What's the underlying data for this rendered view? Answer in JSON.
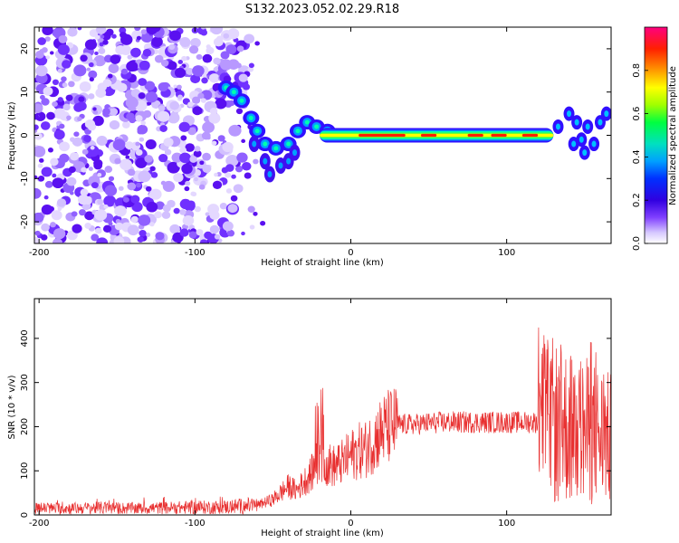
{
  "title": "S132.2023.052.02.29.R18",
  "chart_data": [
    {
      "type": "heatmap",
      "xlabel": "Height of straight line (km)",
      "ylabel": "Frequency (Hz)",
      "xlim": [
        -203,
        167
      ],
      "ylim": [
        -25,
        25
      ],
      "xticks": [
        -200,
        -100,
        0,
        100
      ],
      "yticks": [
        -20,
        -10,
        0,
        10,
        20
      ],
      "colorbar": {
        "label": "Normalized spectral amplitude",
        "range": [
          0.0,
          1.0
        ],
        "ticks": [
          0.0,
          0.2,
          0.4,
          0.6,
          0.8
        ],
        "colormap": [
          "#ffffff",
          "#d6c8ff",
          "#8040ff",
          "#4000e0",
          "#0030ff",
          "#00a0ff",
          "#00e0c0",
          "#00ff40",
          "#a0ff00",
          "#ffff00",
          "#ff8000",
          "#ff2000",
          "#ff0080"
        ]
      },
      "features": {
        "noise_region_x": [
          -203,
          -65
        ],
        "carrier_frequency_hz": 0.0,
        "carrier_x_range": [
          -30,
          130
        ],
        "carrier_peak_amplitude": 1.0
      }
    },
    {
      "type": "line",
      "xlabel": "Height of straight line (km)",
      "ylabel": "SNR (10 * v/v)",
      "xlim": [
        -203,
        167
      ],
      "ylim": [
        0,
        490
      ],
      "xticks": [
        -200,
        -100,
        0,
        100
      ],
      "yticks": [
        0,
        100,
        200,
        300,
        400
      ],
      "series": [
        {
          "color": "#e83030",
          "x": [
            -200,
            -180,
            -160,
            -140,
            -120,
            -100,
            -80,
            -60,
            -50,
            -45,
            -40,
            -35,
            -30,
            -25,
            -20,
            -15,
            -10,
            -5,
            0,
            5,
            10,
            15,
            20,
            25,
            30,
            40,
            50,
            60,
            70,
            80,
            90,
            100,
            110,
            120,
            130,
            140,
            150,
            160,
            166
          ],
          "y": [
            15,
            15,
            16,
            15,
            16,
            17,
            18,
            22,
            35,
            50,
            65,
            55,
            75,
            95,
            130,
            115,
            110,
            120,
            135,
            145,
            150,
            170,
            190,
            200,
            205,
            205,
            208,
            210,
            210,
            210,
            210,
            210,
            210,
            210,
            212,
            200,
            190,
            180,
            170
          ]
        }
      ]
    }
  ]
}
